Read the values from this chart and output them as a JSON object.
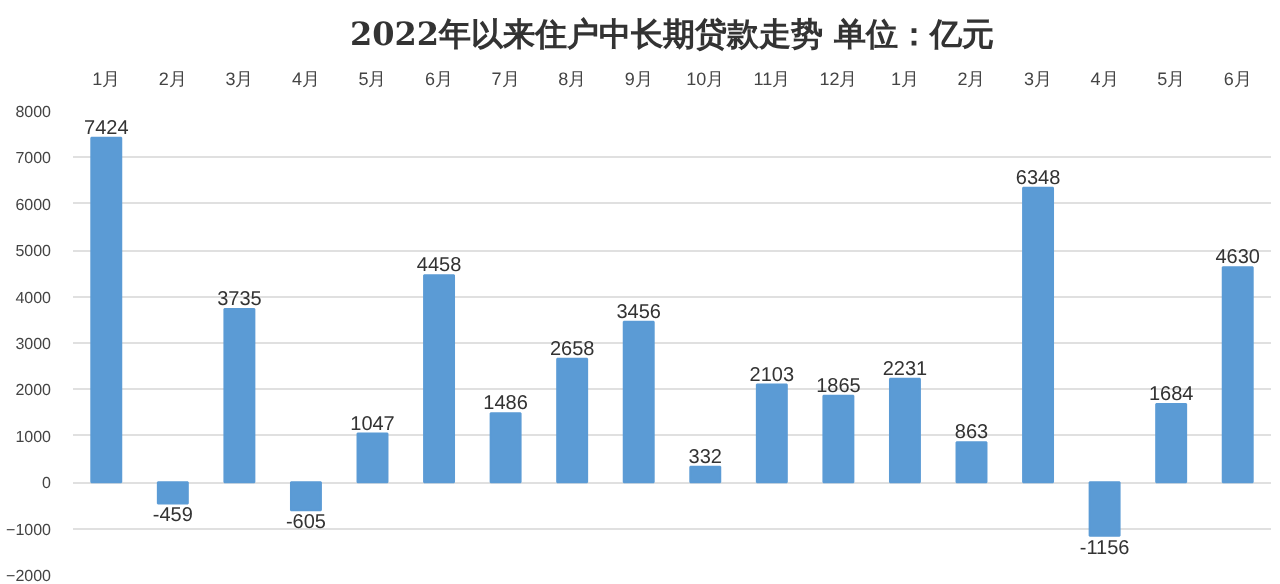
{
  "chart_data": {
    "type": "bar",
    "title": "2022年以来住户中长期贷款走势 单位：亿元",
    "categories": [
      "1月",
      "2月",
      "3月",
      "4月",
      "5月",
      "6月",
      "7月",
      "8月",
      "9月",
      "10月",
      "11月",
      "12月",
      "1月",
      "2月",
      "3月",
      "4月",
      "5月",
      "6月"
    ],
    "values": [
      7424,
      -459,
      3735,
      -605,
      1047,
      4458,
      1486,
      2658,
      3456,
      332,
      2103,
      1865,
      2231,
      863,
      6348,
      -1156,
      1684,
      4630
    ],
    "color": "#5b9bd5",
    "ylim": [
      -2000,
      8000
    ],
    "yticks": [
      -2000,
      -1000,
      0,
      1000,
      2000,
      3000,
      4000,
      5000,
      6000,
      7000,
      8000
    ],
    "grid": "y",
    "data_labels": true
  }
}
